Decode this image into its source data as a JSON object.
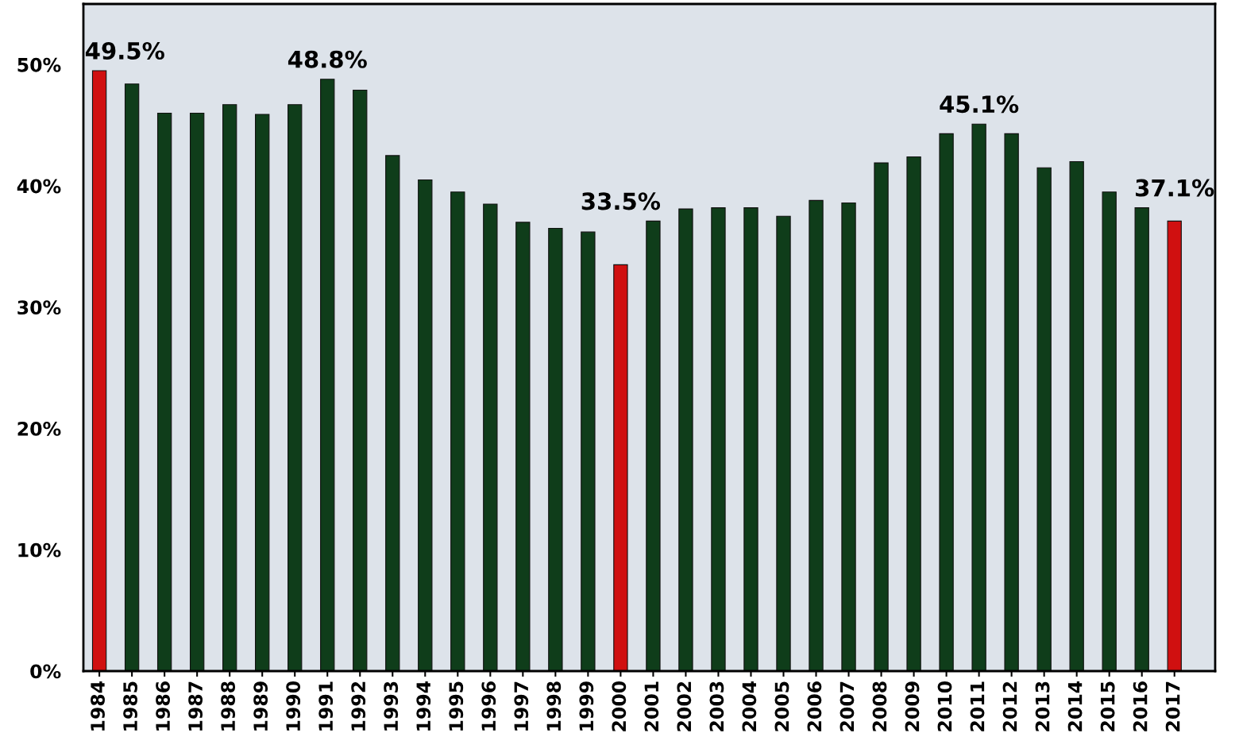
{
  "chart_data": {
    "type": "bar",
    "categories": [
      "1984",
      "1985",
      "1986",
      "1987",
      "1988",
      "1989",
      "1990",
      "1991",
      "1992",
      "1993",
      "1994",
      "1995",
      "1996",
      "1997",
      "1998",
      "1999",
      "2000",
      "2001",
      "2002",
      "2003",
      "2004",
      "2005",
      "2006",
      "2007",
      "2008",
      "2009",
      "2010",
      "2011",
      "2012",
      "2013",
      "2014",
      "2015",
      "2016",
      "2017"
    ],
    "values": [
      49.5,
      48.4,
      46.0,
      46.0,
      46.7,
      45.9,
      46.7,
      48.8,
      47.9,
      42.5,
      40.5,
      39.5,
      38.5,
      37.0,
      36.5,
      36.2,
      33.5,
      37.1,
      38.1,
      38.2,
      38.2,
      37.5,
      38.8,
      38.6,
      41.9,
      42.4,
      44.3,
      45.1,
      44.3,
      41.5,
      42.0,
      39.5,
      38.2,
      37.1
    ],
    "colors": [
      "#d01010",
      "#0f3d1a",
      "#0f3d1a",
      "#0f3d1a",
      "#0f3d1a",
      "#0f3d1a",
      "#0f3d1a",
      "#0f3d1a",
      "#0f3d1a",
      "#0f3d1a",
      "#0f3d1a",
      "#0f3d1a",
      "#0f3d1a",
      "#0f3d1a",
      "#0f3d1a",
      "#0f3d1a",
      "#d01010",
      "#0f3d1a",
      "#0f3d1a",
      "#0f3d1a",
      "#0f3d1a",
      "#0f3d1a",
      "#0f3d1a",
      "#0f3d1a",
      "#0f3d1a",
      "#0f3d1a",
      "#0f3d1a",
      "#0f3d1a",
      "#0f3d1a",
      "#0f3d1a",
      "#0f3d1a",
      "#0f3d1a",
      "#0f3d1a",
      "#d01010"
    ],
    "value_labels": [
      "49.5%",
      null,
      null,
      null,
      null,
      null,
      null,
      "48.8%",
      null,
      null,
      null,
      null,
      null,
      null,
      null,
      null,
      "33.5%",
      null,
      null,
      null,
      null,
      null,
      null,
      null,
      null,
      null,
      null,
      "45.1%",
      null,
      null,
      null,
      null,
      null,
      "37.1%"
    ],
    "ylim": [
      0,
      55
    ],
    "yticks": [
      {
        "value": 0,
        "label": "0%"
      },
      {
        "value": 10,
        "label": "10%"
      },
      {
        "value": 20,
        "label": "20%"
      },
      {
        "value": 30,
        "label": "30%"
      },
      {
        "value": 40,
        "label": "40%"
      },
      {
        "value": 50,
        "label": "50%"
      }
    ],
    "grid": false
  }
}
